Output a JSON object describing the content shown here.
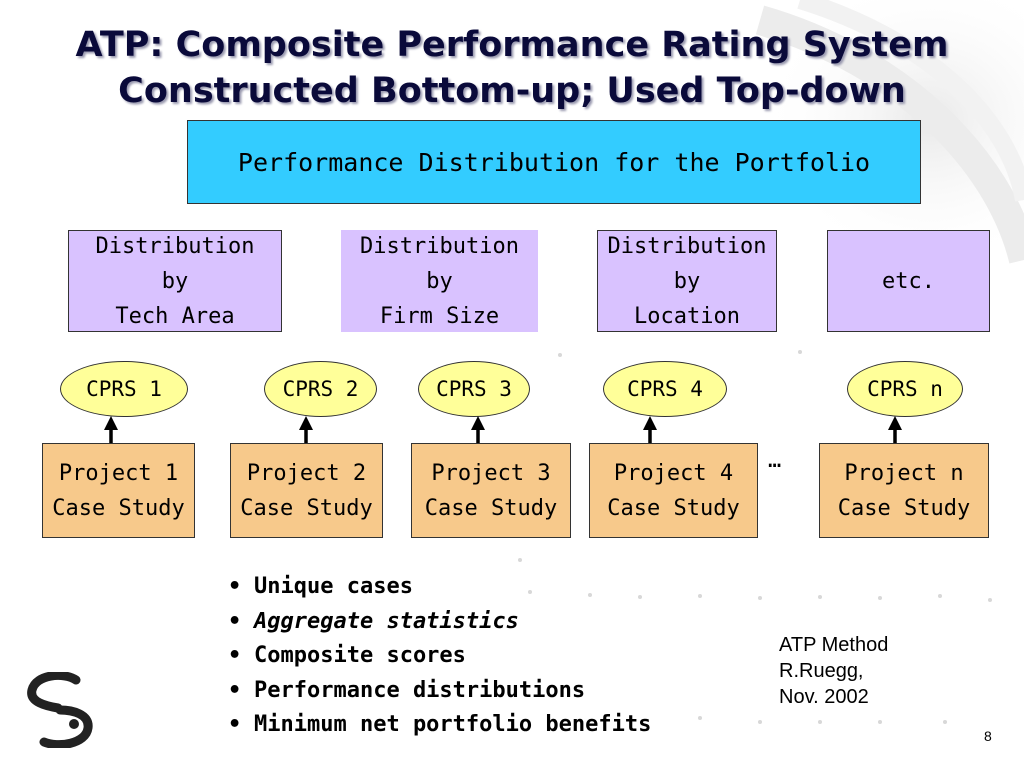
{
  "title": {
    "line1": "ATP:  Composite Performance Rating System",
    "line2": "Constructed Bottom-up; Used Top-down"
  },
  "portfolio_box": "Performance Distribution for the Portfolio",
  "distributions": [
    {
      "line1": "Distribution",
      "line2": "by",
      "line3": "Tech Area"
    },
    {
      "line1": "Distribution",
      "line2": "by",
      "line3": "Firm Size"
    },
    {
      "line1": "Distribution",
      "line2": "by",
      "line3": "Location"
    },
    {
      "label": "etc."
    }
  ],
  "cprs": [
    "CPRS 1",
    "CPRS 2",
    "CPRS 3",
    "CPRS 4",
    "CPRS n"
  ],
  "projects": [
    {
      "line1": "Project 1",
      "line2": "Case Study"
    },
    {
      "line1": "Project 2",
      "line2": "Case Study"
    },
    {
      "line1": "Project 3",
      "line2": "Case Study"
    },
    {
      "line1": "Project 4",
      "line2": "Case Study"
    },
    {
      "line1": "Project n",
      "line2": "Case Study"
    }
  ],
  "ellipsis": "…",
  "bullets": [
    {
      "text": "Unique cases",
      "italic": false
    },
    {
      "text": "Aggregate statistics",
      "italic": true
    },
    {
      "text": "Composite scores",
      "italic": false
    },
    {
      "text": "Performance distributions",
      "italic": false
    },
    {
      "text": "Minimum net portfolio benefits",
      "italic": false
    }
  ],
  "bullet_symbol": "•",
  "credit": {
    "line1": "ATP Method",
    "line2": "R.Ruegg,",
    "line3": "Nov. 2002"
  },
  "page_number": "8",
  "logo": "cs-logo-icon",
  "colors": {
    "portfolio": "#33ccff",
    "distribution": "#d9c2ff",
    "cprs": "#ffff99",
    "project": "#f7c98b",
    "title": "#0a0a3a"
  }
}
